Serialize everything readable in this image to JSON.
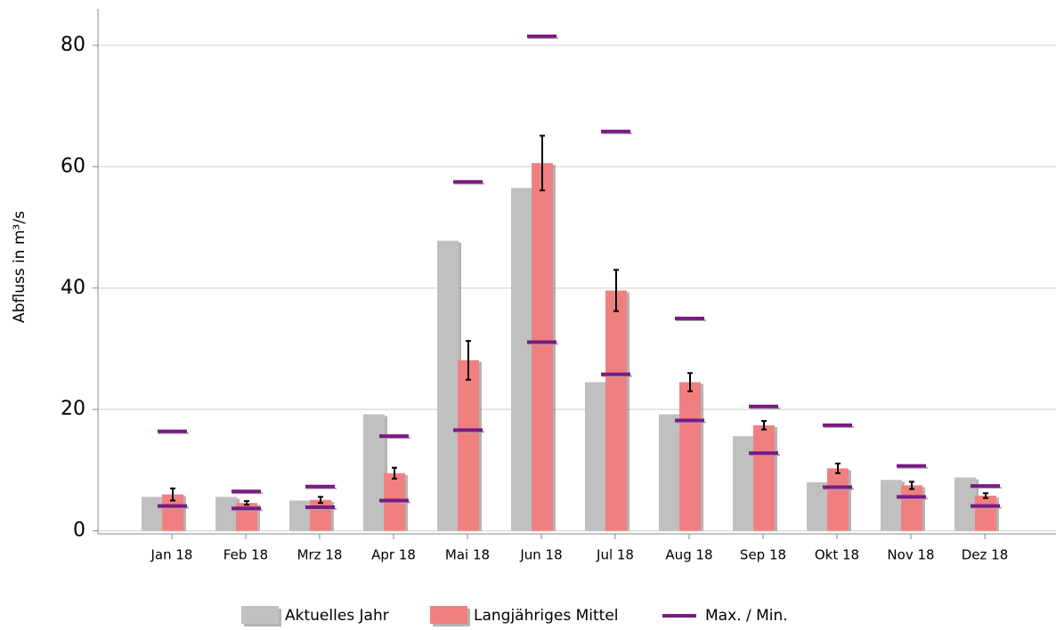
{
  "chart_data": {
    "type": "bar",
    "y_label": "Abfluss in m³/s",
    "categories": [
      "Jan 18",
      "Feb 18",
      "Mrz 18",
      "Apr 18",
      "Mai 18",
      "Jun 18",
      "Jul 18",
      "Aug 18",
      "Sep 18",
      "Okt 18",
      "Nov 18",
      "Dez 18"
    ],
    "series": [
      {
        "name": "Aktuelles Jahr",
        "color": "#c0c0c0",
        "values": [
          5.6,
          5.6,
          5.0,
          19.2,
          47.8,
          56.5,
          24.5,
          19.2,
          15.6,
          8.0,
          8.4,
          8.8
        ]
      },
      {
        "name": "Langjähriges Mittel",
        "color": "#f08080",
        "values": [
          6.0,
          4.6,
          5.1,
          9.5,
          28.1,
          60.6,
          39.6,
          24.5,
          17.4,
          10.3,
          7.5,
          5.8
        ],
        "errors": [
          1.0,
          0.3,
          0.5,
          0.9,
          3.2,
          4.5,
          3.4,
          1.5,
          0.7,
          0.8,
          0.6,
          0.4
        ]
      },
      {
        "name": "Max. / Min.",
        "color": "#7a1a82",
        "max": [
          16.4,
          6.5,
          7.3,
          15.6,
          57.5,
          81.5,
          65.8,
          35.0,
          20.5,
          17.4,
          10.7,
          7.4
        ],
        "min": [
          4.1,
          3.7,
          3.9,
          5.0,
          16.6,
          31.1,
          25.8,
          18.2,
          12.8,
          7.2,
          5.6,
          4.1
        ]
      }
    ],
    "ylim": [
      -0.5,
      86
    ],
    "yticks": [
      0,
      20,
      40,
      60,
      80
    ],
    "grid": true
  }
}
